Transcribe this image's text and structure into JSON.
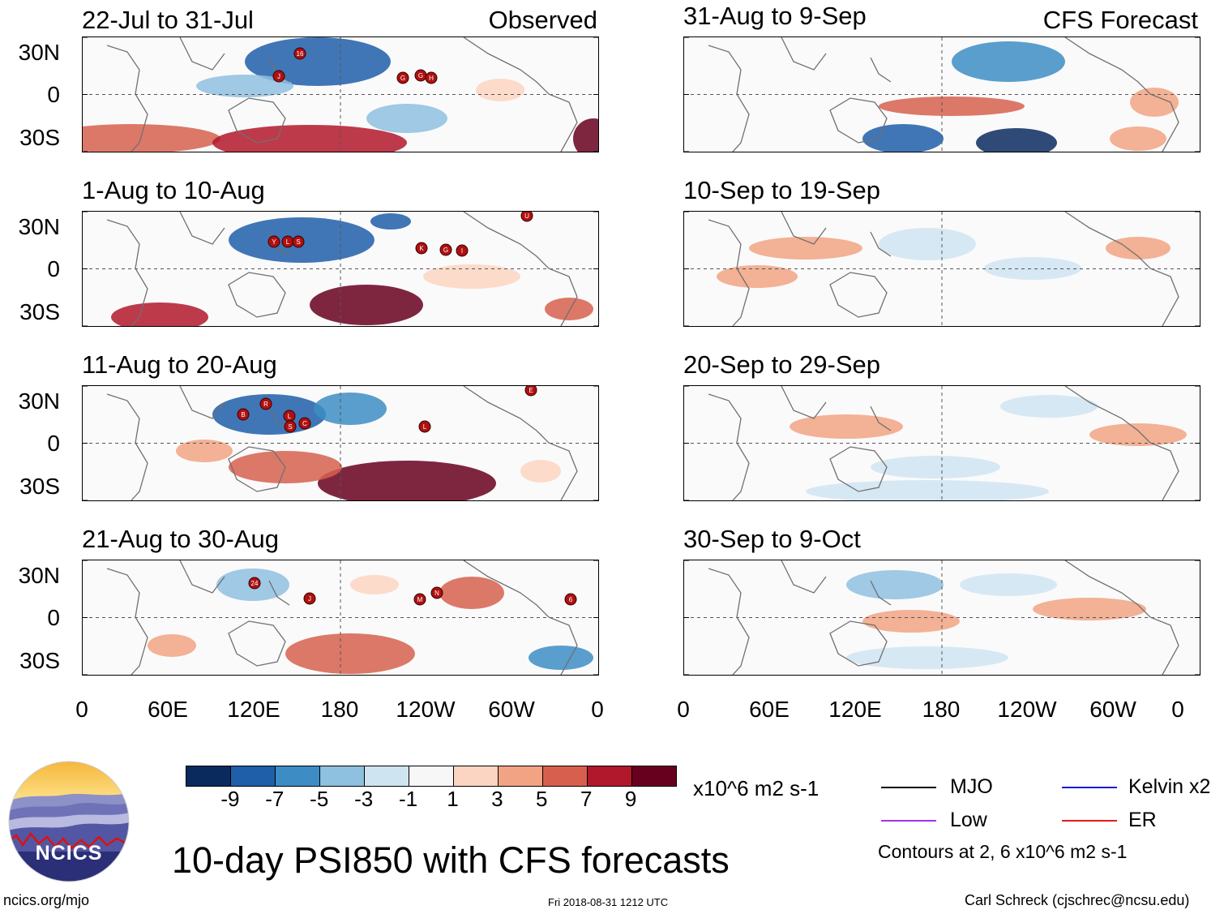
{
  "header": {
    "left_tag": "Observed",
    "right_tag": "CFS Forecast"
  },
  "observed_panels": [
    {
      "title": "22-Jul to 31-Jul",
      "storms": [
        "16",
        "J",
        "G",
        "G",
        "H"
      ]
    },
    {
      "title": "1-Aug to 10-Aug",
      "storms": [
        "Y",
        "L",
        "S",
        "K",
        "G",
        "I",
        "U"
      ]
    },
    {
      "title": "11-Aug to 20-Aug",
      "storms": [
        "R",
        "B",
        "L",
        "S",
        "C",
        "L",
        "E"
      ]
    },
    {
      "title": "21-Aug to 30-Aug",
      "storms": [
        "24",
        "J",
        "M",
        "N",
        "6"
      ]
    }
  ],
  "forecast_panels": [
    {
      "title": "31-Aug to 9-Sep"
    },
    {
      "title": "10-Sep to 19-Sep"
    },
    {
      "title": "20-Sep to 29-Sep"
    },
    {
      "title": "30-Sep to 9-Oct"
    }
  ],
  "lat_labels": [
    "30N",
    "0",
    "30S"
  ],
  "lon_labels": [
    "0",
    "60E",
    "120E",
    "180",
    "120W",
    "60W",
    "0"
  ],
  "colorbar": {
    "levels": [
      "-9",
      "-7",
      "-5",
      "-3",
      "-1",
      "1",
      "3",
      "5",
      "7",
      "9"
    ],
    "colors": [
      "#0a2a5e",
      "#1f5ea8",
      "#3d8dc4",
      "#8ec0df",
      "#cfe4f1",
      "#f7f7f7",
      "#fbd5c2",
      "#f1a383",
      "#d6604d",
      "#b2182b",
      "#67001f"
    ],
    "units": "x10^6 m2 s-1"
  },
  "legend": {
    "items": [
      {
        "label": "MJO",
        "color": "#000000"
      },
      {
        "label": "Kelvin x2",
        "color": "#1a1adb"
      },
      {
        "label": "Low",
        "color": "#a333e8"
      },
      {
        "label": "ER",
        "color": "#e31a1c"
      }
    ],
    "contours_note": "Contours at 2, 6 x10^6 m2 s-1"
  },
  "logo_text": "NCICS",
  "main_title": "10-day PSI850 with CFS forecasts",
  "footer": {
    "url": "ncics.org/mjo",
    "timestamp": "Fri 2018-08-31 1212 UTC",
    "credit": "Carl Schreck (cjschrec@ncsu.edu)"
  }
}
